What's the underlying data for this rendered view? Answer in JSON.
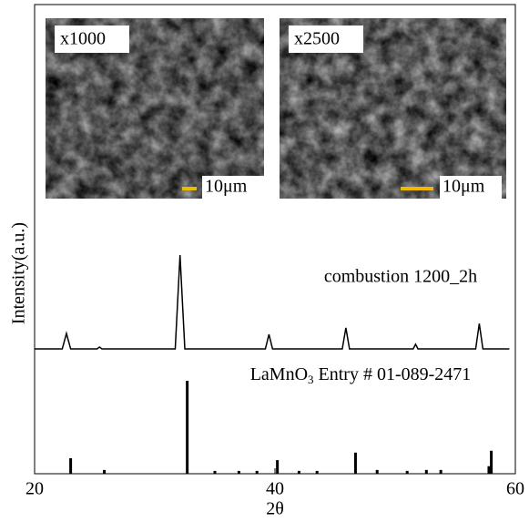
{
  "chart_data": {
    "type": "xrd",
    "xlabel": "2θ",
    "ylabel": "Intensity(a.u.)",
    "xlim": [
      20,
      60
    ],
    "xticks": [
      20,
      40,
      60
    ],
    "ylim": [
      0,
      100
    ],
    "series": [
      {
        "name": "combustion 1200_2h",
        "color": "#000000",
        "x": [
          20,
          22.3,
          22.65,
          23.0,
          25.2,
          25.4,
          25.6,
          31.7,
          32.1,
          32.5,
          39.2,
          39.5,
          39.8,
          45.6,
          45.9,
          46.2,
          51.5,
          51.7,
          51.9,
          56.7,
          57.0,
          57.3,
          59.5
        ],
        "values": [
          26.6,
          26.6,
          29.9,
          26.6,
          26.6,
          27.0,
          26.6,
          26.6,
          46.6,
          26.6,
          26.6,
          29.7,
          26.6,
          26.6,
          31.1,
          26.6,
          26.6,
          27.6,
          26.6,
          26.6,
          32.0,
          26.6,
          26.6
        ]
      },
      {
        "name": [
          "LaMnO",
          "3",
          " Entry # 01-089-2471"
        ],
        "color": "#000000",
        "x": [
          23.0,
          25.8,
          32.7,
          35.0,
          37.0,
          38.5,
          40.2,
          42.0,
          43.5,
          46.7,
          48.5,
          51.0,
          52.6,
          53.8,
          57.8,
          58.0
        ],
        "values": [
          3.3,
          0.8,
          19.8,
          0.6,
          0.6,
          0.6,
          2.9,
          0.6,
          0.6,
          4.5,
          0.8,
          0.6,
          0.8,
          0.8,
          1.6,
          4.9
        ]
      }
    ],
    "insets": [
      {
        "label": "x1000",
        "scale": "10μm"
      },
      {
        "label": "x2500",
        "scale": "10μm"
      }
    ]
  }
}
